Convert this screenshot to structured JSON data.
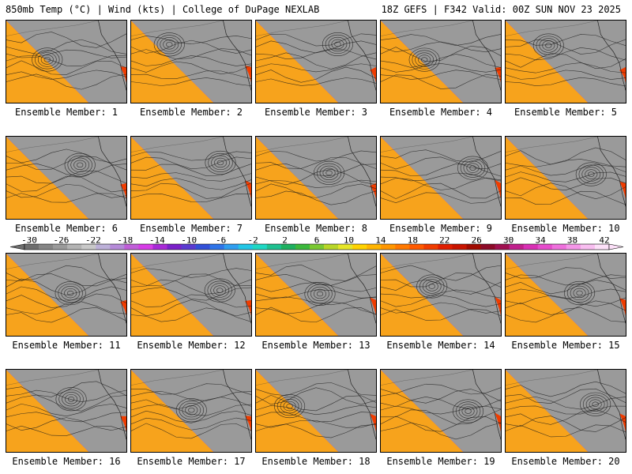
{
  "header": {
    "title_left": "850mb Temp (°C) | Wind (kts) | College of DuPage NEXLAB",
    "title_right": "18Z GEFS | F342 Valid: 00Z SUN NOV 23 2025"
  },
  "panels": [
    {
      "label": "Ensemble Member: 1"
    },
    {
      "label": "Ensemble Member: 2"
    },
    {
      "label": "Ensemble Member: 3"
    },
    {
      "label": "Ensemble Member: 4"
    },
    {
      "label": "Ensemble Member: 5"
    },
    {
      "label": "Ensemble Member: 6"
    },
    {
      "label": "Ensemble Member: 7"
    },
    {
      "label": "Ensemble Member: 8"
    },
    {
      "label": "Ensemble Member: 9"
    },
    {
      "label": "Ensemble Member: 10"
    },
    {
      "label": "Ensemble Member: 11"
    },
    {
      "label": "Ensemble Member: 12"
    },
    {
      "label": "Ensemble Member: 13"
    },
    {
      "label": "Ensemble Member: 14"
    },
    {
      "label": "Ensemble Member: 15"
    },
    {
      "label": "Ensemble Member: 16"
    },
    {
      "label": "Ensemble Member: 17"
    },
    {
      "label": "Ensemble Member: 18"
    },
    {
      "label": "Ensemble Member: 19"
    },
    {
      "label": "Ensemble Member: 20"
    }
  ],
  "colorbar": {
    "tick_labels": [
      "-30",
      "-26",
      "-22",
      "-18",
      "-14",
      "-10",
      "-6",
      "-2",
      "2",
      "6",
      "10",
      "14",
      "18",
      "22",
      "26",
      "30",
      "34",
      "38",
      "42"
    ],
    "colors": [
      "#6e6e6e",
      "#858585",
      "#9a9a9a",
      "#b3b3b3",
      "#c8c8c8",
      "#bcb0d8",
      "#b58ad8",
      "#c05ed8",
      "#d63ce6",
      "#a829d6",
      "#7a20c8",
      "#5a3ad0",
      "#3250d8",
      "#2f74e8",
      "#2f9ef0",
      "#23c6e6",
      "#1fd8c4",
      "#1fc090",
      "#1eb060",
      "#3cb83c",
      "#7ac832",
      "#b8d628",
      "#e6e628",
      "#ffd200",
      "#ffb400",
      "#ff9600",
      "#ff7800",
      "#ff5a00",
      "#f03c00",
      "#e01e00",
      "#c81400",
      "#a00a00",
      "#8c0a28",
      "#a01050",
      "#c0208c",
      "#d830b4",
      "#e64ccc",
      "#ee70dc",
      "#f496e8",
      "#f8bef0",
      "#fce0f8"
    ]
  }
}
